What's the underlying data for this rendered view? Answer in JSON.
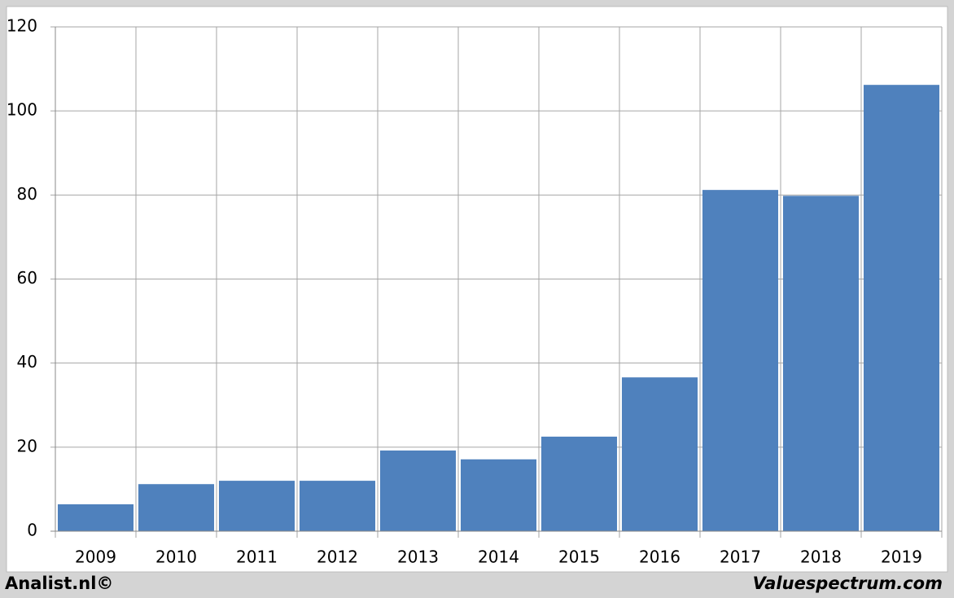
{
  "chart_data": {
    "type": "bar",
    "categories": [
      "2009",
      "2010",
      "2011",
      "2012",
      "2013",
      "2014",
      "2015",
      "2016",
      "2017",
      "2018",
      "2019"
    ],
    "values": [
      6.4,
      11.2,
      12.0,
      12.0,
      19.2,
      17.1,
      22.5,
      36.6,
      81.2,
      79.8,
      106.2
    ],
    "color": "#4f81bd",
    "ylim": [
      0,
      120
    ],
    "yticks": [
      0,
      20,
      40,
      60,
      80,
      100,
      120
    ],
    "grid": true
  },
  "footer": {
    "left": "Analist.nl©",
    "right": "Valuespectrum.com"
  }
}
